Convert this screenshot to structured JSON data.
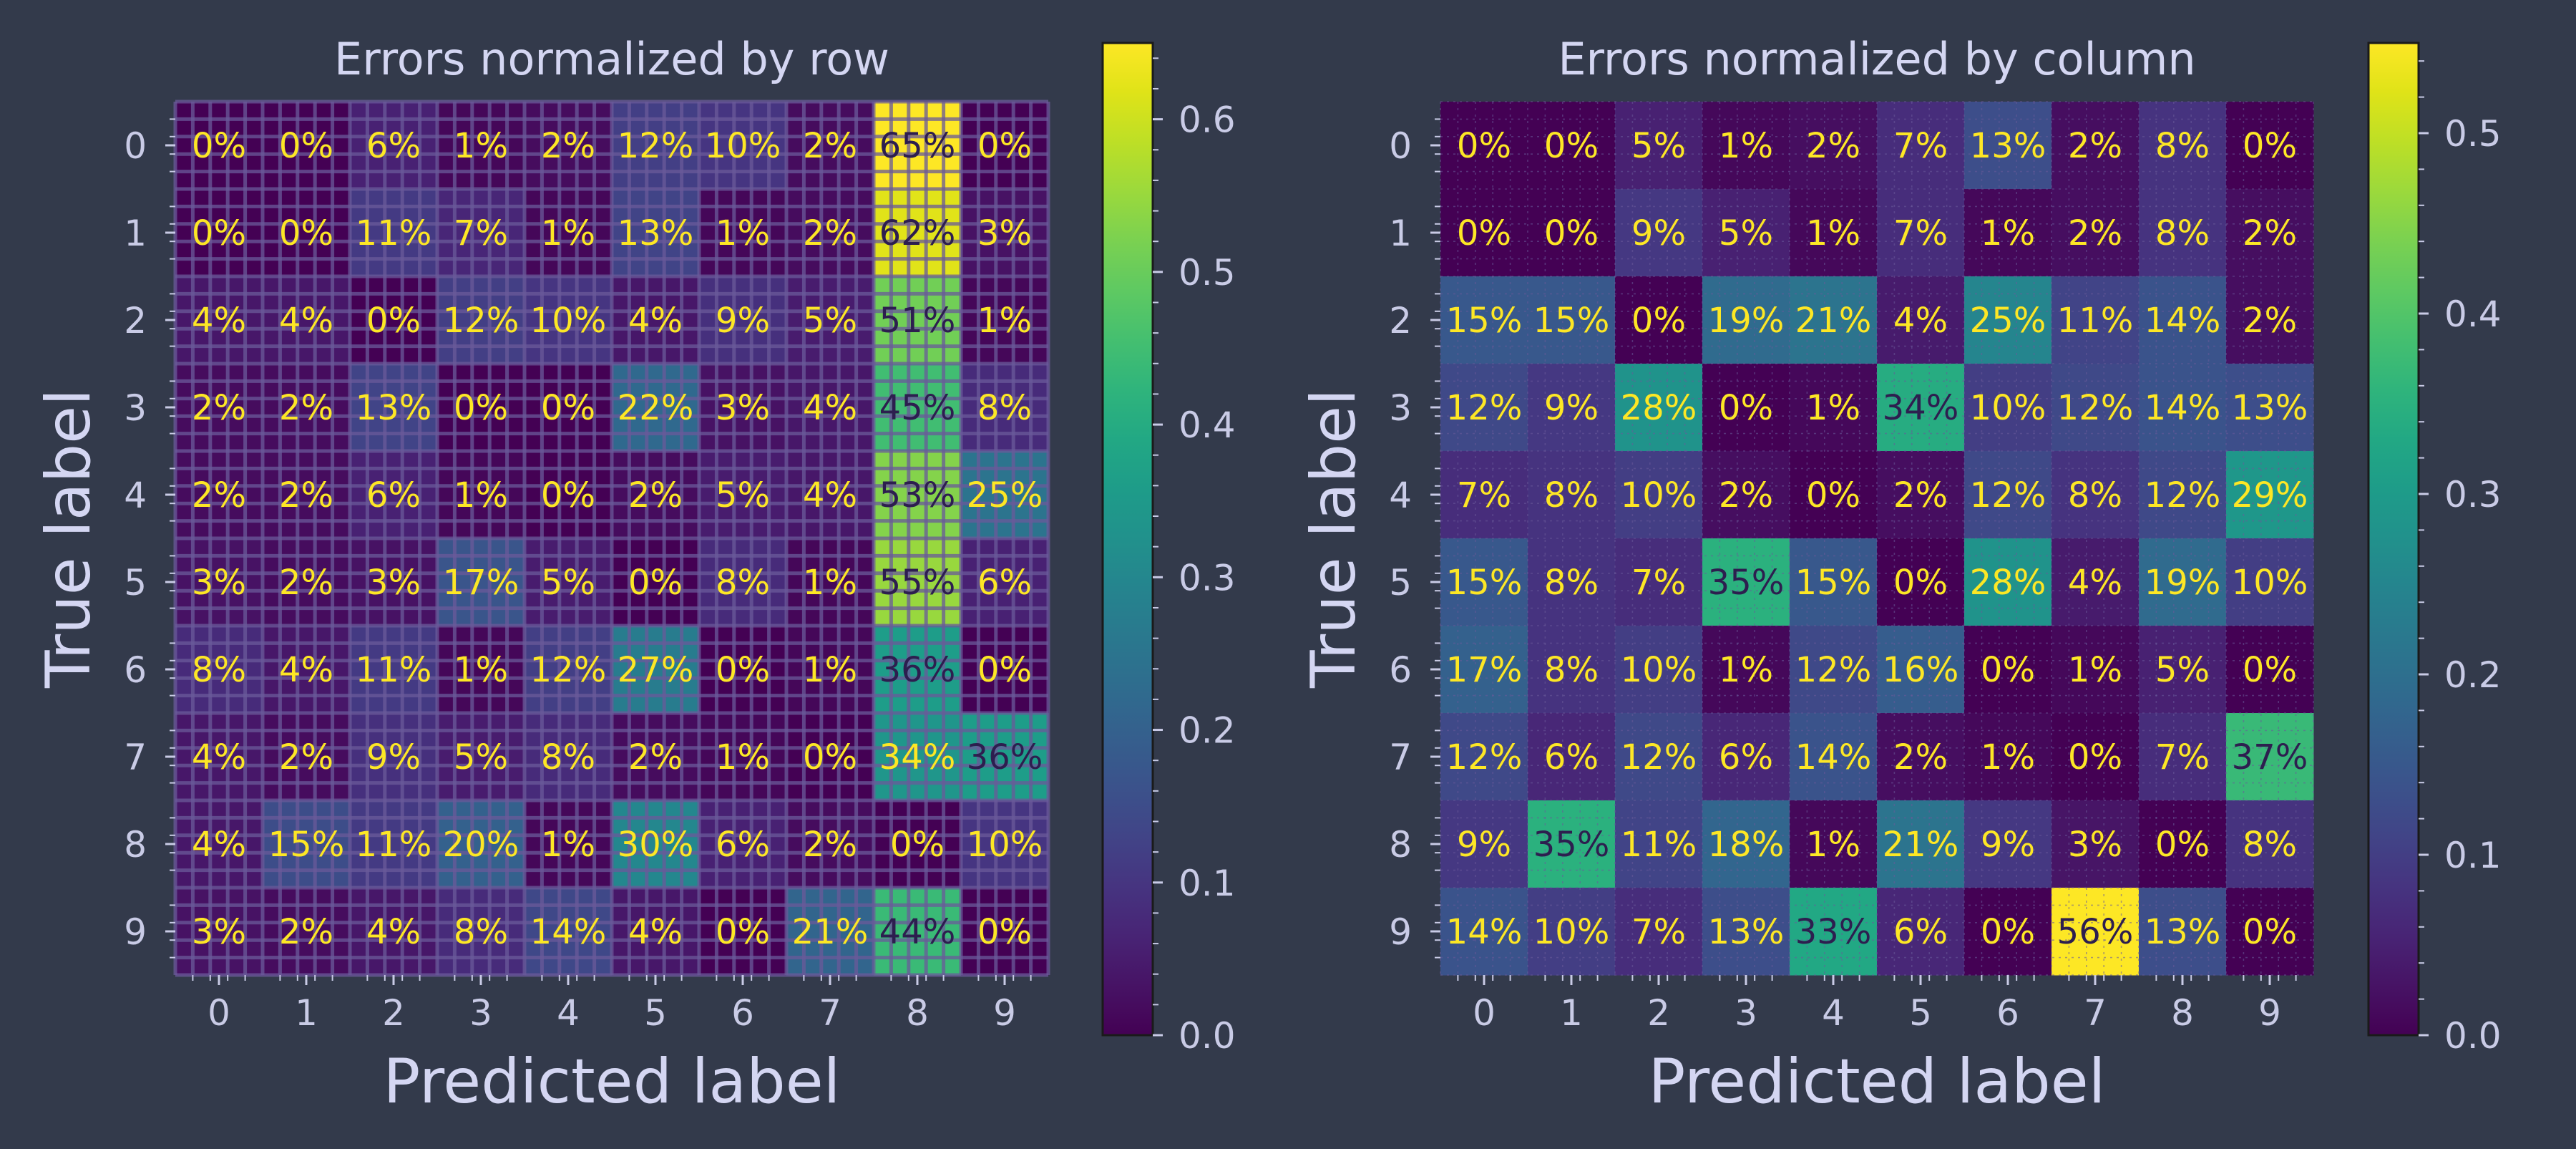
{
  "colors": {
    "background": "#333a4b",
    "axis_text": "#c9cbe6",
    "label_text": "#d4d6f2",
    "grid_line": "#6a5a9a",
    "annotation_light": "#fde725",
    "annotation_dark": "#2d1e4f",
    "colormap": "viridis"
  },
  "chart_data": [
    {
      "type": "heatmap",
      "title": "Errors normalized by row",
      "xlabel": "Predicted label",
      "ylabel": "True label",
      "x_categories": [
        "0",
        "1",
        "2",
        "3",
        "4",
        "5",
        "6",
        "7",
        "8",
        "9"
      ],
      "y_categories": [
        "0",
        "1",
        "2",
        "3",
        "4",
        "5",
        "6",
        "7",
        "8",
        "9"
      ],
      "values": [
        [
          0.0,
          0.0,
          0.06,
          0.01,
          0.02,
          0.12,
          0.1,
          0.02,
          0.65,
          0.0
        ],
        [
          0.0,
          0.0,
          0.11,
          0.07,
          0.01,
          0.13,
          0.01,
          0.02,
          0.62,
          0.03
        ],
        [
          0.04,
          0.04,
          0.0,
          0.12,
          0.1,
          0.04,
          0.09,
          0.05,
          0.51,
          0.01
        ],
        [
          0.02,
          0.02,
          0.13,
          0.0,
          0.0,
          0.22,
          0.03,
          0.04,
          0.45,
          0.08
        ],
        [
          0.02,
          0.02,
          0.06,
          0.01,
          0.0,
          0.02,
          0.05,
          0.04,
          0.53,
          0.25
        ],
        [
          0.03,
          0.02,
          0.03,
          0.17,
          0.05,
          0.0,
          0.08,
          0.01,
          0.55,
          0.06
        ],
        [
          0.08,
          0.04,
          0.11,
          0.01,
          0.12,
          0.27,
          0.0,
          0.01,
          0.36,
          0.0
        ],
        [
          0.04,
          0.02,
          0.09,
          0.05,
          0.08,
          0.02,
          0.01,
          0.0,
          0.34,
          0.36
        ],
        [
          0.04,
          0.15,
          0.11,
          0.2,
          0.01,
          0.3,
          0.06,
          0.02,
          0.0,
          0.1
        ],
        [
          0.03,
          0.02,
          0.04,
          0.08,
          0.14,
          0.04,
          0.0,
          0.21,
          0.44,
          0.0
        ]
      ],
      "cell_labels": [
        [
          "0%",
          "0%",
          "6%",
          "1%",
          "2%",
          "12%",
          "10%",
          "2%",
          "65%",
          "0%"
        ],
        [
          "0%",
          "0%",
          "11%",
          "7%",
          "1%",
          "13%",
          "1%",
          "2%",
          "62%",
          "3%"
        ],
        [
          "4%",
          "4%",
          "0%",
          "12%",
          "10%",
          "4%",
          "9%",
          "5%",
          "51%",
          "1%"
        ],
        [
          "2%",
          "2%",
          "13%",
          "0%",
          "0%",
          "22%",
          "3%",
          "4%",
          "45%",
          "8%"
        ],
        [
          "2%",
          "2%",
          "6%",
          "1%",
          "0%",
          "2%",
          "5%",
          "4%",
          "53%",
          "25%"
        ],
        [
          "3%",
          "2%",
          "3%",
          "17%",
          "5%",
          "0%",
          "8%",
          "1%",
          "55%",
          "6%"
        ],
        [
          "8%",
          "4%",
          "11%",
          "1%",
          "12%",
          "27%",
          "0%",
          "1%",
          "36%",
          "0%"
        ],
        [
          "4%",
          "2%",
          "9%",
          "5%",
          "8%",
          "2%",
          "1%",
          "0%",
          "34%",
          "36%"
        ],
        [
          "4%",
          "15%",
          "11%",
          "20%",
          "1%",
          "30%",
          "6%",
          "2%",
          "0%",
          "10%"
        ],
        [
          "3%",
          "2%",
          "4%",
          "8%",
          "14%",
          "4%",
          "0%",
          "21%",
          "44%",
          "0%"
        ]
      ],
      "zlim": [
        0.0,
        0.65
      ],
      "colorbar_ticks": [
        "0.0",
        "0.1",
        "0.2",
        "0.3",
        "0.4",
        "0.5",
        "0.6"
      ],
      "grid": true
    },
    {
      "type": "heatmap",
      "title": "Errors normalized by column",
      "xlabel": "Predicted label",
      "ylabel": "True label",
      "x_categories": [
        "0",
        "1",
        "2",
        "3",
        "4",
        "5",
        "6",
        "7",
        "8",
        "9"
      ],
      "y_categories": [
        "0",
        "1",
        "2",
        "3",
        "4",
        "5",
        "6",
        "7",
        "8",
        "9"
      ],
      "values": [
        [
          0.0,
          0.0,
          0.05,
          0.01,
          0.02,
          0.07,
          0.13,
          0.02,
          0.08,
          0.0
        ],
        [
          0.0,
          0.0,
          0.09,
          0.05,
          0.01,
          0.07,
          0.01,
          0.02,
          0.08,
          0.02
        ],
        [
          0.15,
          0.15,
          0.0,
          0.19,
          0.21,
          0.04,
          0.25,
          0.11,
          0.14,
          0.02
        ],
        [
          0.12,
          0.09,
          0.28,
          0.0,
          0.01,
          0.34,
          0.1,
          0.12,
          0.14,
          0.13
        ],
        [
          0.07,
          0.08,
          0.1,
          0.02,
          0.0,
          0.02,
          0.12,
          0.08,
          0.12,
          0.29
        ],
        [
          0.15,
          0.08,
          0.07,
          0.35,
          0.15,
          0.0,
          0.28,
          0.04,
          0.19,
          0.1
        ],
        [
          0.17,
          0.08,
          0.1,
          0.01,
          0.12,
          0.16,
          0.0,
          0.01,
          0.05,
          0.0
        ],
        [
          0.12,
          0.06,
          0.12,
          0.06,
          0.14,
          0.02,
          0.01,
          0.0,
          0.07,
          0.37
        ],
        [
          0.09,
          0.35,
          0.11,
          0.18,
          0.01,
          0.21,
          0.09,
          0.03,
          0.0,
          0.08
        ],
        [
          0.14,
          0.1,
          0.07,
          0.13,
          0.33,
          0.06,
          0.0,
          0.56,
          0.13,
          0.0
        ]
      ],
      "cell_labels": [
        [
          "0%",
          "0%",
          "5%",
          "1%",
          "2%",
          "7%",
          "13%",
          "2%",
          "8%",
          "0%"
        ],
        [
          "0%",
          "0%",
          "9%",
          "5%",
          "1%",
          "7%",
          "1%",
          "2%",
          "8%",
          "2%"
        ],
        [
          "15%",
          "15%",
          "0%",
          "19%",
          "21%",
          "4%",
          "25%",
          "11%",
          "14%",
          "2%"
        ],
        [
          "12%",
          "9%",
          "28%",
          "0%",
          "1%",
          "34%",
          "10%",
          "12%",
          "14%",
          "13%"
        ],
        [
          "7%",
          "8%",
          "10%",
          "2%",
          "0%",
          "2%",
          "12%",
          "8%",
          "12%",
          "29%"
        ],
        [
          "15%",
          "8%",
          "7%",
          "35%",
          "15%",
          "0%",
          "28%",
          "4%",
          "19%",
          "10%"
        ],
        [
          "17%",
          "8%",
          "10%",
          "1%",
          "12%",
          "16%",
          "0%",
          "1%",
          "5%",
          "0%"
        ],
        [
          "12%",
          "6%",
          "12%",
          "6%",
          "14%",
          "2%",
          "1%",
          "0%",
          "7%",
          "37%"
        ],
        [
          "9%",
          "35%",
          "11%",
          "18%",
          "1%",
          "21%",
          "9%",
          "3%",
          "0%",
          "8%"
        ],
        [
          "14%",
          "10%",
          "7%",
          "13%",
          "33%",
          "6%",
          "0%",
          "56%",
          "13%",
          "0%"
        ]
      ],
      "zlim": [
        0.0,
        0.55
      ],
      "colorbar_ticks": [
        "0.0",
        "0.1",
        "0.2",
        "0.3",
        "0.4",
        "0.5"
      ],
      "grid": true
    }
  ]
}
